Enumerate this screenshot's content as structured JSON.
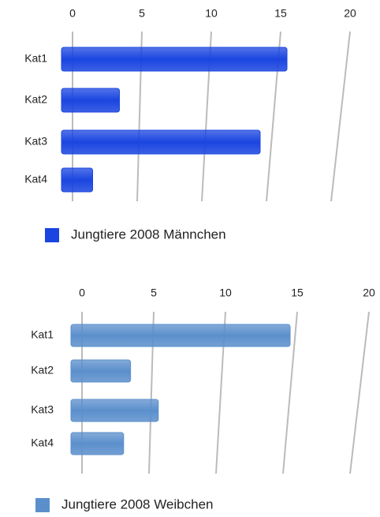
{
  "chart_data": [
    {
      "type": "bar",
      "orientation": "horizontal",
      "categories": [
        "Kat1",
        "Kat2",
        "Kat3",
        "Kat4"
      ],
      "series": [
        {
          "name": "Jungtiere 2008 Männchen",
          "color": "#1a45e0",
          "values": [
            16,
            3.5,
            14,
            1.5
          ]
        }
      ],
      "xlim": [
        0,
        20
      ],
      "xticks": [
        0,
        5,
        10,
        15,
        20
      ],
      "grid": true,
      "legend": "bottom"
    },
    {
      "type": "bar",
      "orientation": "horizontal",
      "categories": [
        "Kat1",
        "Kat2",
        "Kat3",
        "Kat4"
      ],
      "series": [
        {
          "name": "Jungtiere 2008 Weibchen",
          "color": "#5b8fcc",
          "values": [
            15,
            3.5,
            5.5,
            3
          ]
        }
      ],
      "xlim": [
        0,
        20
      ],
      "xticks": [
        0,
        5,
        10,
        15,
        20
      ],
      "grid": true,
      "legend": "bottom"
    }
  ]
}
